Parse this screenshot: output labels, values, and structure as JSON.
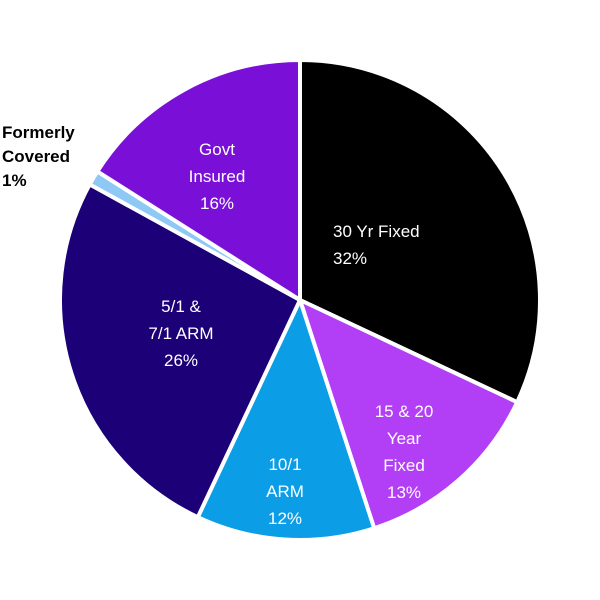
{
  "chart_data": {
    "type": "pie",
    "title": "",
    "slices": [
      {
        "label_lines": [
          "30 Yr Fixed"
        ],
        "value": 32,
        "value_label": "32%",
        "color": "#000000",
        "text_color": "#ffffff"
      },
      {
        "label_lines": [
          "15 & 20",
          "Year",
          "Fixed"
        ],
        "value": 13,
        "value_label": "13%",
        "color": "#b23ff5",
        "text_color": "#ffffff"
      },
      {
        "label_lines": [
          "10/1",
          "ARM"
        ],
        "value": 12,
        "value_label": "12%",
        "color": "#0b9ee6",
        "text_color": "#ffffff"
      },
      {
        "label_lines": [
          "5/1 &",
          "7/1 ARM"
        ],
        "value": 26,
        "value_label": "26%",
        "color": "#1c0078",
        "text_color": "#ffffff"
      },
      {
        "label_lines": [
          "Formerly",
          "Covered"
        ],
        "value": 1,
        "value_label": "1%",
        "color": "#8ec9f5",
        "text_color": "#000000",
        "outside": true
      },
      {
        "label_lines": [
          "Govt",
          "Insured"
        ],
        "value": 16,
        "value_label": "16%",
        "color": "#7a10d8",
        "text_color": "#ffffff"
      }
    ],
    "start_angle_deg": 0,
    "direction": "clockwise",
    "legend": "none"
  }
}
